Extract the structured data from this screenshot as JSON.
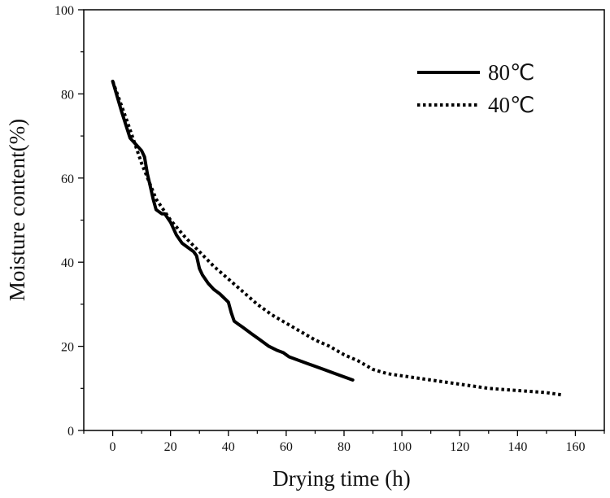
{
  "chart_data": {
    "type": "line",
    "title": "",
    "xlabel": "Drying time (h)",
    "ylabel": "Moisture content(%)",
    "xlim": [
      -10,
      170
    ],
    "ylim": [
      0,
      100
    ],
    "xticks": [
      0,
      20,
      40,
      60,
      80,
      100,
      120,
      140,
      160
    ],
    "yticks": [
      0,
      20,
      40,
      60,
      80,
      100
    ],
    "grid": false,
    "legend_position": "top-right",
    "series": [
      {
        "name": "80℃",
        "style": "solid",
        "color": "#000000",
        "x": [
          0,
          3,
          6,
          8,
          10,
          11,
          12,
          13,
          14,
          15,
          17,
          18,
          20,
          22,
          24,
          26,
          28,
          29,
          30,
          31,
          33,
          35,
          37,
          40,
          41,
          42,
          43,
          45,
          48,
          51,
          54,
          57,
          59,
          61,
          65,
          69,
          73,
          77,
          83
        ],
        "y": [
          83,
          76,
          69.5,
          68,
          66.5,
          65,
          61,
          58,
          55,
          52.5,
          51.5,
          51.5,
          49.5,
          46.5,
          44.5,
          43.5,
          42.5,
          41.5,
          38.5,
          37,
          35,
          33.5,
          32.5,
          30.5,
          28,
          26,
          25.5,
          24.5,
          23,
          21.5,
          20,
          19,
          18.5,
          17.5,
          16.5,
          15.5,
          14.5,
          13.5,
          12
        ]
      },
      {
        "name": "40℃",
        "style": "dotted",
        "color": "#000000",
        "x": [
          0,
          5,
          10,
          15,
          20,
          25,
          30,
          35,
          40,
          45,
          50,
          55,
          60,
          65,
          70,
          75,
          80,
          85,
          90,
          95,
          100,
          110,
          120,
          130,
          140,
          150,
          155
        ],
        "y": [
          83,
          73.5,
          63.5,
          55,
          50,
          46,
          42.5,
          39,
          36,
          33,
          30,
          27.5,
          25.5,
          23.5,
          21.5,
          20,
          18,
          16.5,
          14.5,
          13.5,
          13,
          12,
          11,
          10,
          9.5,
          9,
          8.5
        ]
      }
    ]
  }
}
